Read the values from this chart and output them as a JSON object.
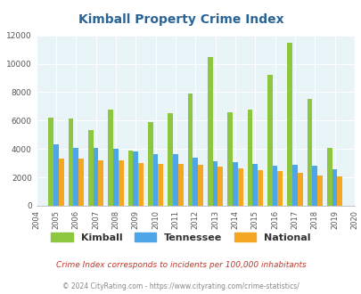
{
  "title": "Kimball Property Crime Index",
  "years": [
    2004,
    2005,
    2006,
    2007,
    2008,
    2009,
    2010,
    2011,
    2012,
    2013,
    2014,
    2015,
    2016,
    2017,
    2018,
    2019,
    2020
  ],
  "kimball": [
    null,
    6200,
    6150,
    5350,
    6750,
    3900,
    5900,
    6550,
    7900,
    10500,
    6600,
    6800,
    9200,
    11500,
    7500,
    4100,
    null
  ],
  "tennessee": [
    null,
    4300,
    4050,
    4050,
    4000,
    3800,
    3650,
    3650,
    3400,
    3150,
    3100,
    2950,
    2850,
    2900,
    2800,
    2550,
    null
  ],
  "national": [
    null,
    3350,
    3300,
    3200,
    3200,
    3000,
    2950,
    2950,
    2900,
    2750,
    2650,
    2500,
    2450,
    2350,
    2150,
    2100,
    null
  ],
  "kimball_color": "#8dc63f",
  "tennessee_color": "#4da6e8",
  "national_color": "#f5a623",
  "bg_color": "#e8f4f8",
  "ylim": [
    0,
    12000
  ],
  "yticks": [
    0,
    2000,
    4000,
    6000,
    8000,
    10000,
    12000
  ],
  "footnote1": "Crime Index corresponds to incidents per 100,000 inhabitants",
  "footnote2": "© 2024 CityRating.com - https://www.cityrating.com/crime-statistics/",
  "title_color": "#2a6496",
  "footnote1_color": "#c0392b",
  "footnote2_color": "#888888",
  "bar_width": 0.26
}
